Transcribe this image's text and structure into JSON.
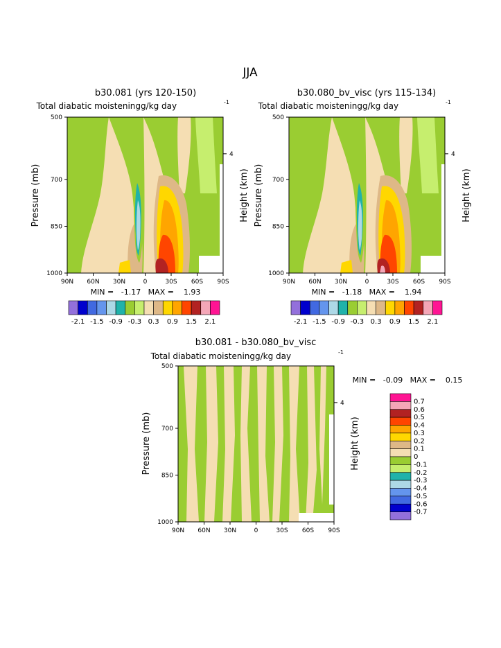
{
  "title": "JJA",
  "panels": [
    {
      "title": "b30.081 (yrs 120-150)",
      "subtitle_left": "Total diabatic moistening",
      "subtitle_right": "g/kg day",
      "subtitle_exp": "-1",
      "ylabel": "Pressure (mb)",
      "ylabel_right": "Height (km)",
      "minmax": "MIN =   -1.17   MAX =    1.93"
    },
    {
      "title": "b30.080_bv_visc (yrs 115-134)",
      "subtitle_left": "Total diabatic moistening",
      "subtitle_right": "g/kg day",
      "subtitle_exp": "-1",
      "ylabel": "Pressure (mb)",
      "ylabel_right": "Height (km)",
      "minmax": "MIN =   -1.18   MAX =    1.94"
    },
    {
      "title": "b30.081 - b30.080_bv_visc",
      "subtitle_left": "Total diabatic moistening",
      "subtitle_right": "g/kg day",
      "subtitle_exp": "-1",
      "ylabel": "Pressure (mb)",
      "ylabel_right": "Height (km)",
      "minmax": "MIN =   -0.09   MAX =    0.15"
    }
  ],
  "xticks": [
    "90N",
    "60N",
    "30N",
    "0",
    "30S",
    "60S",
    "90S"
  ],
  "yticks": [
    "500",
    "700",
    "850",
    "1000"
  ],
  "right_tick": "4",
  "colorbar_abs": {
    "colors": [
      "#9370db",
      "#0000cd",
      "#4169e1",
      "#6495ed",
      "#add8e6",
      "#20b2aa",
      "#9acd32",
      "#c6ee6e",
      "#f5deb3",
      "#deb887",
      "#ffd700",
      "#ffa500",
      "#ff4500",
      "#b22222",
      "#f4a6b7",
      "#ff1493"
    ],
    "labels": [
      "-2.1",
      "-1.5",
      "-0.9",
      "-0.3",
      "0.3",
      "0.9",
      "1.5",
      "2.1"
    ]
  },
  "colorbar_diff": {
    "colors": [
      "#ff1493",
      "#f4a6b7",
      "#b22222",
      "#ff4500",
      "#ffa500",
      "#ffd700",
      "#deb887",
      "#f5deb3",
      "#9acd32",
      "#c6ee6e",
      "#20b2aa",
      "#add8e6",
      "#6495ed",
      "#4169e1",
      "#0000cd",
      "#9370db"
    ],
    "labels": [
      "0.7",
      "0.6",
      "0.5",
      "0.4",
      "0.3",
      "0.2",
      "0.1",
      "0",
      "-0.1",
      "-0.2",
      "-0.3",
      "-0.4",
      "-0.5",
      "-0.6",
      "-0.7"
    ]
  },
  "chart_data": [
    {
      "type": "heatmap",
      "title": "b30.081 (yrs 120-150)",
      "xlabel": "",
      "ylabel": "Pressure (mb)",
      "x": [
        "90N",
        "60N",
        "30N",
        "0",
        "30S",
        "60S",
        "90S"
      ],
      "y": [
        500,
        700,
        850,
        1000
      ],
      "ylim": [
        500,
        1000
      ],
      "min": -1.17,
      "max": 1.93,
      "levels": [
        -2.1,
        -1.8,
        -1.5,
        -1.2,
        -0.9,
        -0.6,
        -0.3,
        0,
        0.3,
        0.6,
        0.9,
        1.2,
        1.5,
        1.8,
        2.1
      ]
    },
    {
      "type": "heatmap",
      "title": "b30.080_bv_visc (yrs 115-134)",
      "xlabel": "",
      "ylabel": "Pressure (mb)",
      "x": [
        "90N",
        "60N",
        "30N",
        "0",
        "30S",
        "60S",
        "90S"
      ],
      "y": [
        500,
        700,
        850,
        1000
      ],
      "ylim": [
        500,
        1000
      ],
      "min": -1.18,
      "max": 1.94,
      "levels": [
        -2.1,
        -1.8,
        -1.5,
        -1.2,
        -0.9,
        -0.6,
        -0.3,
        0,
        0.3,
        0.6,
        0.9,
        1.2,
        1.5,
        1.8,
        2.1
      ]
    },
    {
      "type": "heatmap",
      "title": "b30.081 - b30.080_bv_visc",
      "xlabel": "",
      "ylabel": "Pressure (mb)",
      "x": [
        "90N",
        "60N",
        "30N",
        "0",
        "30S",
        "60S",
        "90S"
      ],
      "y": [
        500,
        700,
        850,
        1000
      ],
      "ylim": [
        500,
        1000
      ],
      "min": -0.09,
      "max": 0.15,
      "levels": [
        -0.7,
        -0.6,
        -0.5,
        -0.4,
        -0.3,
        -0.2,
        -0.1,
        0,
        0.1,
        0.2,
        0.3,
        0.4,
        0.5,
        0.6,
        0.7
      ]
    }
  ]
}
